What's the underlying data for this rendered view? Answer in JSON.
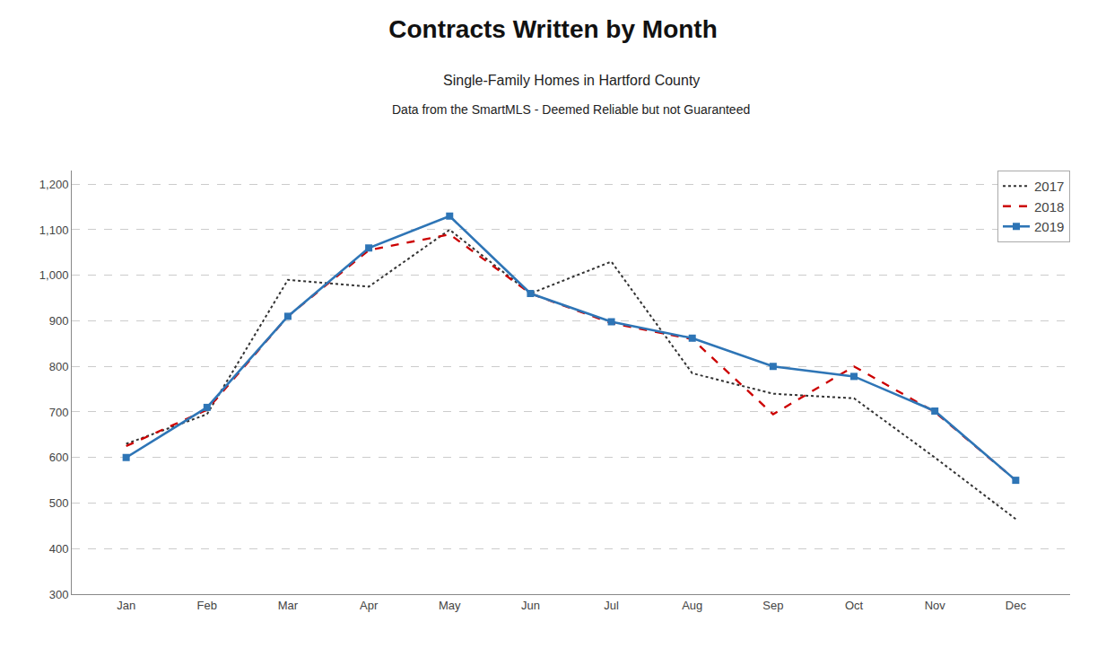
{
  "chart_data": {
    "type": "line",
    "title": "Contracts Written by Month",
    "subtitle": [
      "Single-Family Homes in Hartford County",
      "Data from the SmartMLS - Deemed Reliable but not Guaranteed"
    ],
    "categories": [
      "Jan",
      "Feb",
      "Mar",
      "Apr",
      "May",
      "Jun",
      "Jul",
      "Aug",
      "Sep",
      "Oct",
      "Nov",
      "Dec"
    ],
    "series": [
      {
        "name": "2017",
        "color": "#333333",
        "line_style": "dotted",
        "values": [
          630,
          695,
          990,
          975,
          1100,
          960,
          1030,
          785,
          740,
          730,
          600,
          465
        ]
      },
      {
        "name": "2018",
        "color": "#cc0000",
        "line_style": "dashed",
        "values": [
          625,
          705,
          910,
          1055,
          1090,
          960,
          895,
          860,
          695,
          800,
          700,
          550
        ]
      },
      {
        "name": "2019",
        "color": "#2E75B6",
        "line_style": "solid",
        "marker": "square",
        "values": [
          600,
          710,
          910,
          1060,
          1130,
          960,
          898,
          862,
          800,
          778,
          702,
          550
        ]
      }
    ],
    "ylim": [
      300,
      1230
    ],
    "yticks": [
      300,
      400,
      500,
      600,
      700,
      800,
      900,
      {
        "value": 1000,
        "label": "1,000"
      },
      {
        "value": 1100,
        "label": "1,100"
      },
      {
        "value": 1200,
        "label": "1,200"
      }
    ],
    "grid": true,
    "legend": "upper right"
  }
}
